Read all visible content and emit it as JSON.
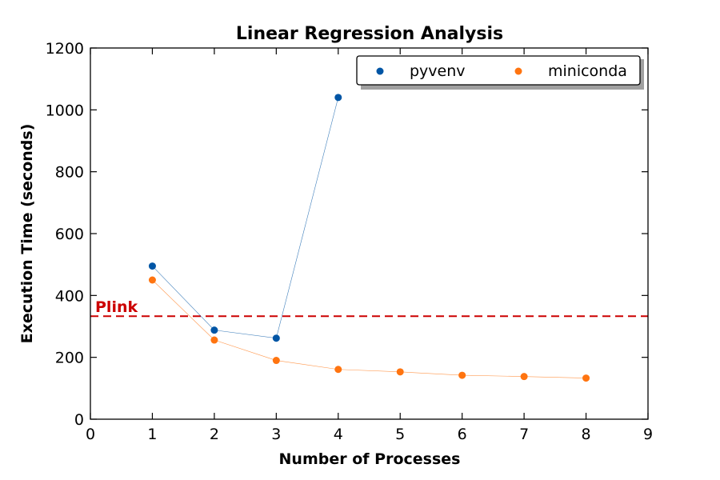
{
  "chart_data": {
    "type": "line",
    "title": "Linear Regression Analysis",
    "xlabel": "Number of Processes",
    "ylabel": "Execution Time (seconds)",
    "xlim": [
      0,
      9
    ],
    "ylim": [
      0,
      1200
    ],
    "xticks": [
      0,
      1,
      2,
      3,
      4,
      5,
      6,
      7,
      8,
      9
    ],
    "yticks": [
      0,
      200,
      400,
      600,
      800,
      1000,
      1200
    ],
    "grid": false,
    "legend_position": "top-right",
    "series": [
      {
        "name": "pyvenv",
        "color": "#0055a5",
        "x": [
          1,
          2,
          3,
          4
        ],
        "y": [
          495,
          288,
          262,
          1040
        ]
      },
      {
        "name": "miniconda",
        "color": "#ff7410",
        "x": [
          1,
          2,
          3,
          4,
          5,
          6,
          7,
          8
        ],
        "y": [
          450,
          256,
          190,
          161,
          153,
          142,
          138,
          133
        ]
      }
    ],
    "reference_line": {
      "label": "Plink",
      "y": 333,
      "color": "#cc0000",
      "style": "dashed"
    }
  }
}
